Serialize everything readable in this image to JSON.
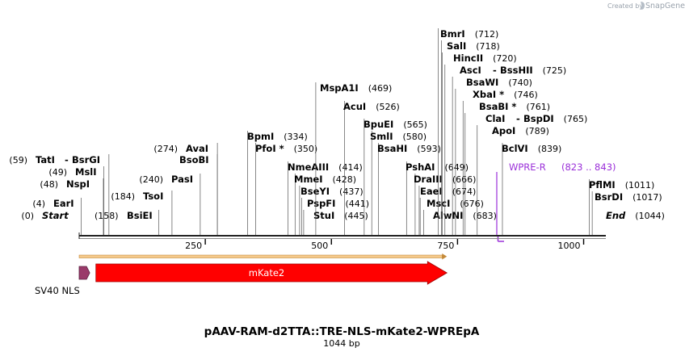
{
  "credit": {
    "created_by": "Created by",
    "brand": "SnapGene"
  },
  "plasmid": {
    "name": "pAAV-RAM-d2TTA::TRE-NLS-mKate2-WPREpA",
    "length_label": "1044 bp",
    "length": 1044
  },
  "ruler": {
    "ticks": [
      250,
      500,
      750,
      1000
    ],
    "labels": [
      "250",
      "500",
      "750",
      "1000"
    ]
  },
  "sites": [
    {
      "name": "Start",
      "pos_label": "(0)",
      "pos": 0,
      "italic": true
    },
    {
      "name": "EarI",
      "pos_label": "(4)",
      "pos": 4
    },
    {
      "name": "NspI",
      "pos_label": "(48)",
      "pos": 48
    },
    {
      "name": "MslI",
      "pos_label": "(49)",
      "pos": 49
    },
    {
      "name": "TatI",
      "pos_label": "(59)",
      "pos": 59
    },
    {
      "name": "BsrGI",
      "pos_label": "",
      "pos": 59,
      "pair": "-"
    },
    {
      "name": "BsiEI",
      "pos_label": "(158)",
      "pos": 158
    },
    {
      "name": "TsoI",
      "pos_label": "(184)",
      "pos": 184
    },
    {
      "name": "PasI",
      "pos_label": "(240)",
      "pos": 240
    },
    {
      "name": "BsoBI",
      "pos_label": "",
      "pos": 274
    },
    {
      "name": "AvaI",
      "pos_label": "(274)",
      "pos": 274
    },
    {
      "name": "BpmI",
      "pos_label": "(334)",
      "pos": 334
    },
    {
      "name": "PfoI *",
      "pos_label": "(350)",
      "pos": 350
    },
    {
      "name": "NmeAIII",
      "pos_label": "(414)",
      "pos": 414
    },
    {
      "name": "MmeI",
      "pos_label": "(428)",
      "pos": 428
    },
    {
      "name": "BseYI",
      "pos_label": "(437)",
      "pos": 437
    },
    {
      "name": "PspFI",
      "pos_label": "(441)",
      "pos": 441
    },
    {
      "name": "StuI",
      "pos_label": "(445)",
      "pos": 445
    },
    {
      "name": "MspA1I",
      "pos_label": "(469)",
      "pos": 469
    },
    {
      "name": "AcuI",
      "pos_label": "(526)",
      "pos": 526
    },
    {
      "name": "BpuEI",
      "pos_label": "(565)",
      "pos": 565
    },
    {
      "name": "SmlI",
      "pos_label": "(580)",
      "pos": 580
    },
    {
      "name": "BsaHI",
      "pos_label": "(593)",
      "pos": 593
    },
    {
      "name": "PshAI",
      "pos_label": "(649)",
      "pos": 649
    },
    {
      "name": "DraIII",
      "pos_label": "(666)",
      "pos": 666
    },
    {
      "name": "EaeI",
      "pos_label": "(674)",
      "pos": 674
    },
    {
      "name": "MscI",
      "pos_label": "(676)",
      "pos": 676
    },
    {
      "name": "AlwNI",
      "pos_label": "(683)",
      "pos": 683
    },
    {
      "name": "BmrI",
      "pos_label": "(712)",
      "pos": 712
    },
    {
      "name": "SalI",
      "pos_label": "(718)",
      "pos": 718
    },
    {
      "name": "HincII",
      "pos_label": "(720)",
      "pos": 720
    },
    {
      "name": "AscI",
      "pos_label": "",
      "pos": 725
    },
    {
      "name": "BssHII",
      "pos_label": "(725)",
      "pos": 725,
      "pair": "-"
    },
    {
      "name": "BsaWI",
      "pos_label": "(740)",
      "pos": 740
    },
    {
      "name": "XbaI *",
      "pos_label": "(746)",
      "pos": 746
    },
    {
      "name": "BsaBI *",
      "pos_label": "(761)",
      "pos": 761
    },
    {
      "name": "ClaI",
      "pos_label": "",
      "pos": 765
    },
    {
      "name": "BspDI",
      "pos_label": "(765)",
      "pos": 765,
      "pair": "-"
    },
    {
      "name": "ApoI",
      "pos_label": "(789)",
      "pos": 789
    },
    {
      "name": "BclVI",
      "pos_label": "(839)",
      "pos": 839
    },
    {
      "name": "PflMI",
      "pos_label": "(1011)",
      "pos": 1011
    },
    {
      "name": "BsrDI",
      "pos_label": "(1017)",
      "pos": 1017
    },
    {
      "name": "End",
      "pos_label": "(1044)",
      "pos": 1044,
      "italic": true
    }
  ],
  "primer": {
    "name": "WPRE-R",
    "range_label": "(823 .. 843)",
    "start": 823,
    "end": 843,
    "color": "#9b30d9"
  },
  "features": [
    {
      "name": "SV40 NLS",
      "start": 1,
      "end": 21,
      "color": "#9a3a6a",
      "direction": "forward"
    },
    {
      "name": "mKate2",
      "start": 22,
      "end": 729,
      "color": "#ff0000",
      "direction": "forward"
    },
    {
      "name": "",
      "start": 1,
      "end": 729,
      "color": "#f5c98a",
      "direction": "forward"
    }
  ]
}
